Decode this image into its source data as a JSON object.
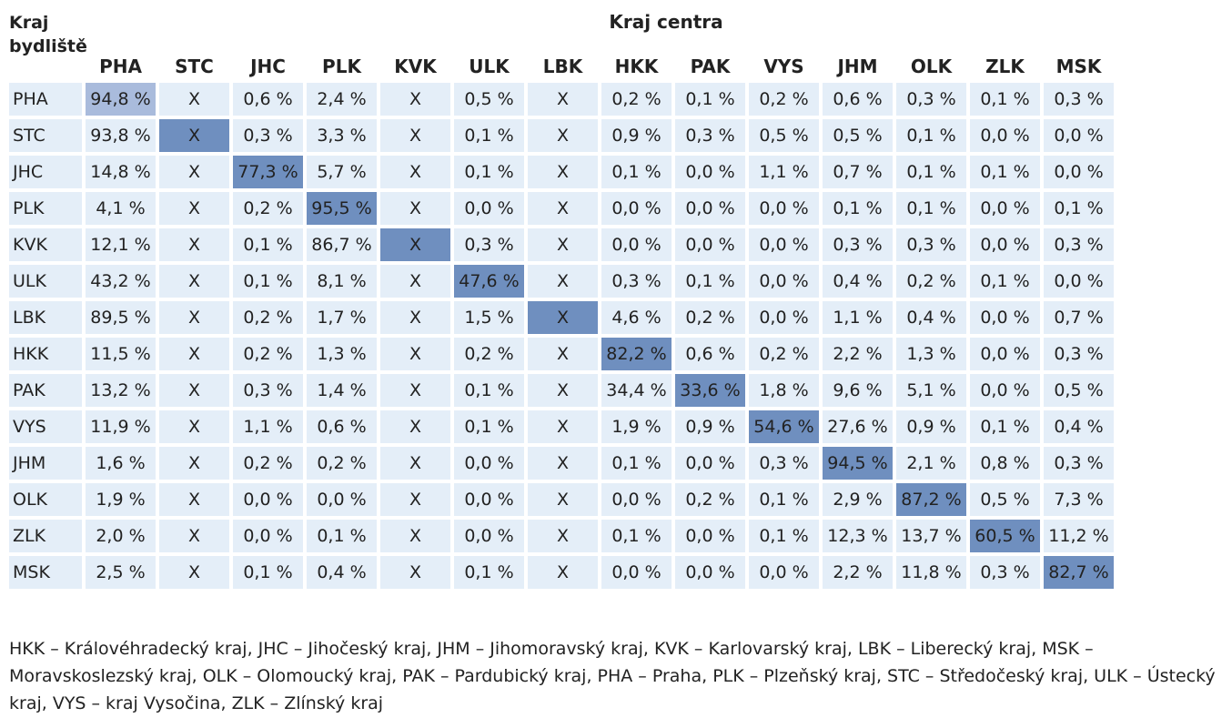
{
  "header": {
    "row_header_label": "Kraj bydliště",
    "column_group_label": "Kraj centra"
  },
  "columns": [
    "PHA",
    "STC",
    "JHC",
    "PLK",
    "KVK",
    "ULK",
    "LBK",
    "HKK",
    "PAK",
    "VYS",
    "JHM",
    "OLK",
    "ZLK",
    "MSK"
  ],
  "rows": [
    {
      "label": "PHA",
      "cells": [
        "94,8 %",
        "X",
        "0,6 %",
        "2,4 %",
        "X",
        "0,5 %",
        "X",
        "0,2 %",
        "0,1 %",
        "0,2 %",
        "0,6 %",
        "0,3 %",
        "0,1 %",
        "0,3 %"
      ]
    },
    {
      "label": "STC",
      "cells": [
        "93,8 %",
        "X",
        "0,3 %",
        "3,3 %",
        "X",
        "0,1 %",
        "X",
        "0,9 %",
        "0,3 %",
        "0,5 %",
        "0,5 %",
        "0,1 %",
        "0,0 %",
        "0,0 %"
      ]
    },
    {
      "label": "JHC",
      "cells": [
        "14,8 %",
        "X",
        "77,3 %",
        "5,7 %",
        "X",
        "0,1 %",
        "X",
        "0,1 %",
        "0,0 %",
        "1,1 %",
        "0,7 %",
        "0,1 %",
        "0,1 %",
        "0,0 %"
      ]
    },
    {
      "label": "PLK",
      "cells": [
        "4,1 %",
        "X",
        "0,2 %",
        "95,5 %",
        "X",
        "0,0 %",
        "X",
        "0,0 %",
        "0,0 %",
        "0,0 %",
        "0,1 %",
        "0,1 %",
        "0,0 %",
        "0,1 %"
      ]
    },
    {
      "label": "KVK",
      "cells": [
        "12,1 %",
        "X",
        "0,1 %",
        "86,7 %",
        "X",
        "0,3 %",
        "X",
        "0,0 %",
        "0,0 %",
        "0,0 %",
        "0,3 %",
        "0,3 %",
        "0,0 %",
        "0,3 %"
      ]
    },
    {
      "label": "ULK",
      "cells": [
        "43,2 %",
        "X",
        "0,1 %",
        "8,1 %",
        "X",
        "47,6 %",
        "X",
        "0,3 %",
        "0,1 %",
        "0,0 %",
        "0,4 %",
        "0,2 %",
        "0,1 %",
        "0,0 %"
      ]
    },
    {
      "label": "LBK",
      "cells": [
        "89,5 %",
        "X",
        "0,2 %",
        "1,7 %",
        "X",
        "1,5 %",
        "X",
        "4,6 %",
        "0,2 %",
        "0,0 %",
        "1,1 %",
        "0,4 %",
        "0,0 %",
        "0,7 %"
      ]
    },
    {
      "label": "HKK",
      "cells": [
        "11,5 %",
        "X",
        "0,2 %",
        "1,3 %",
        "X",
        "0,2 %",
        "X",
        "82,2 %",
        "0,6 %",
        "0,2 %",
        "2,2 %",
        "1,3 %",
        "0,0 %",
        "0,3 %"
      ]
    },
    {
      "label": "PAK",
      "cells": [
        "13,2 %",
        "X",
        "0,3 %",
        "1,4 %",
        "X",
        "0,1 %",
        "X",
        "34,4 %",
        "33,6 %",
        "1,8 %",
        "9,6 %",
        "5,1 %",
        "0,0 %",
        "0,5 %"
      ]
    },
    {
      "label": "VYS",
      "cells": [
        "11,9 %",
        "X",
        "1,1 %",
        "0,6 %",
        "X",
        "0,1 %",
        "X",
        "1,9 %",
        "0,9 %",
        "54,6 %",
        "27,6 %",
        "0,9 %",
        "0,1 %",
        "0,4 %"
      ]
    },
    {
      "label": "JHM",
      "cells": [
        "1,6 %",
        "X",
        "0,2 %",
        "0,2 %",
        "X",
        "0,0 %",
        "X",
        "0,1 %",
        "0,0 %",
        "0,3 %",
        "94,5 %",
        "2,1 %",
        "0,8 %",
        "0,3 %"
      ]
    },
    {
      "label": "OLK",
      "cells": [
        "1,9 %",
        "X",
        "0,0 %",
        "0,0 %",
        "X",
        "0,0 %",
        "X",
        "0,0 %",
        "0,2 %",
        "0,1 %",
        "2,9 %",
        "87,2 %",
        "0,5 %",
        "7,3 %"
      ]
    },
    {
      "label": "ZLK",
      "cells": [
        "2,0 %",
        "X",
        "0,0 %",
        "0,1 %",
        "X",
        "0,0 %",
        "X",
        "0,1 %",
        "0,0 %",
        "0,1 %",
        "12,3 %",
        "13,7 %",
        "60,5 %",
        "11,2 %"
      ]
    },
    {
      "label": "MSK",
      "cells": [
        "2,5 %",
        "X",
        "0,1 %",
        "0,4 %",
        "X",
        "0,1 %",
        "X",
        "0,0 %",
        "0,0 %",
        "0,0 %",
        "2,2 %",
        "11,8 %",
        "0,3 %",
        "82,7 %"
      ]
    }
  ],
  "colors": {
    "cell_background": "#e4eef8",
    "diagonal_highlight": "#6f8fbf",
    "diagonal_highlight_first": "#a9bbdc"
  },
  "footnote": "HKK – Královéhradecký kraj, JHC – Jihočeský kraj, JHM – Jihomoravský kraj, KVK – Karlovarský kraj, LBK – Liberecký kraj, MSK – Moravskoslezský kraj, OLK – Olomoucký kraj, PAK – Pardubický kraj, PHA – Praha, PLK – Plzeňský kraj, STC – Středočeský kraj, ULK – Ústecký kraj, VYS – kraj Vysočina, ZLK – Zlínský kraj"
}
